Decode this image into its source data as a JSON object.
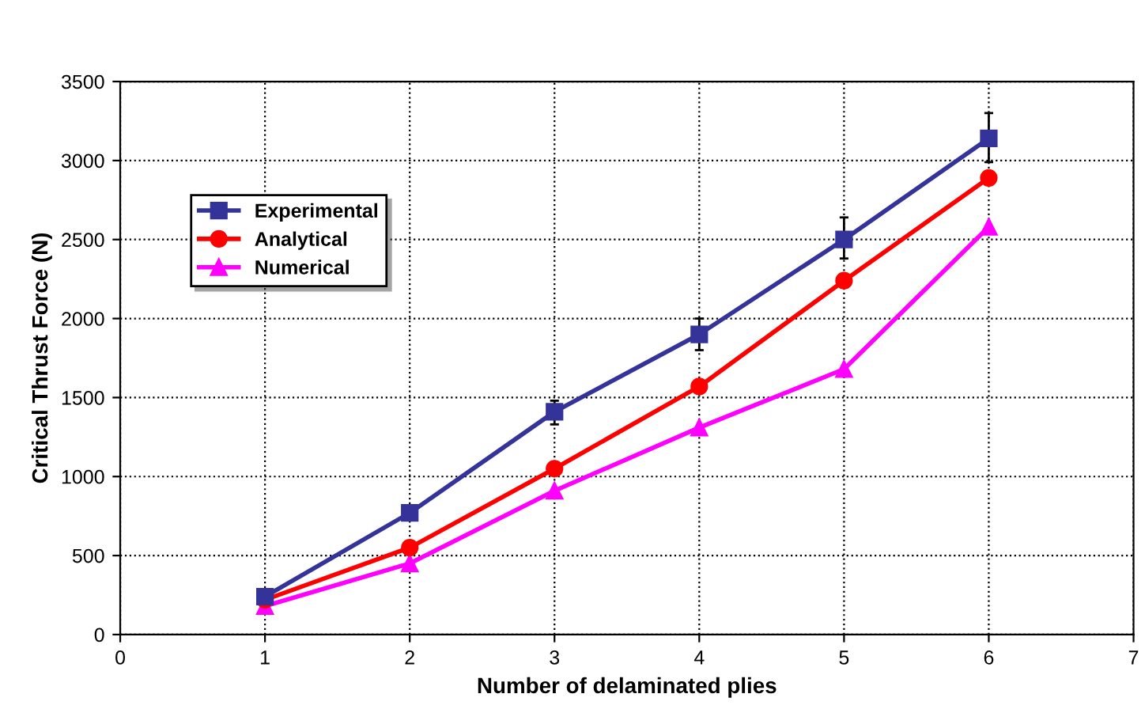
{
  "chart_data": {
    "type": "line",
    "xlabel": "Number of delaminated plies",
    "ylabel": "Critical Thrust Force (N)",
    "x": [
      1,
      2,
      3,
      4,
      5,
      6
    ],
    "series": [
      {
        "name": "Experimental",
        "color": "#333399",
        "marker": "square",
        "values": [
          240,
          770,
          1410,
          1900,
          2500,
          3140
        ],
        "errors": [
          null,
          null,
          [
            1330,
            1480
          ],
          [
            1800,
            2000
          ],
          [
            2380,
            2640
          ],
          [
            2990,
            3300
          ]
        ]
      },
      {
        "name": "Analytical",
        "color": "#ff0000",
        "marker": "circle",
        "values": [
          220,
          550,
          1050,
          1570,
          2240,
          2890
        ]
      },
      {
        "name": "Numerical",
        "color": "#ff00ff",
        "marker": "triangle",
        "values": [
          180,
          450,
          910,
          1310,
          1680,
          2580
        ]
      }
    ],
    "xlim": [
      0,
      7
    ],
    "xticks": [
      0,
      1,
      2,
      3,
      4,
      5,
      6,
      7
    ],
    "ylim": [
      0,
      3500
    ],
    "yticks": [
      0,
      500,
      1000,
      1500,
      2000,
      2500,
      3000,
      3500
    ],
    "grid": true,
    "legend": "top left",
    "line_style": "solid"
  }
}
